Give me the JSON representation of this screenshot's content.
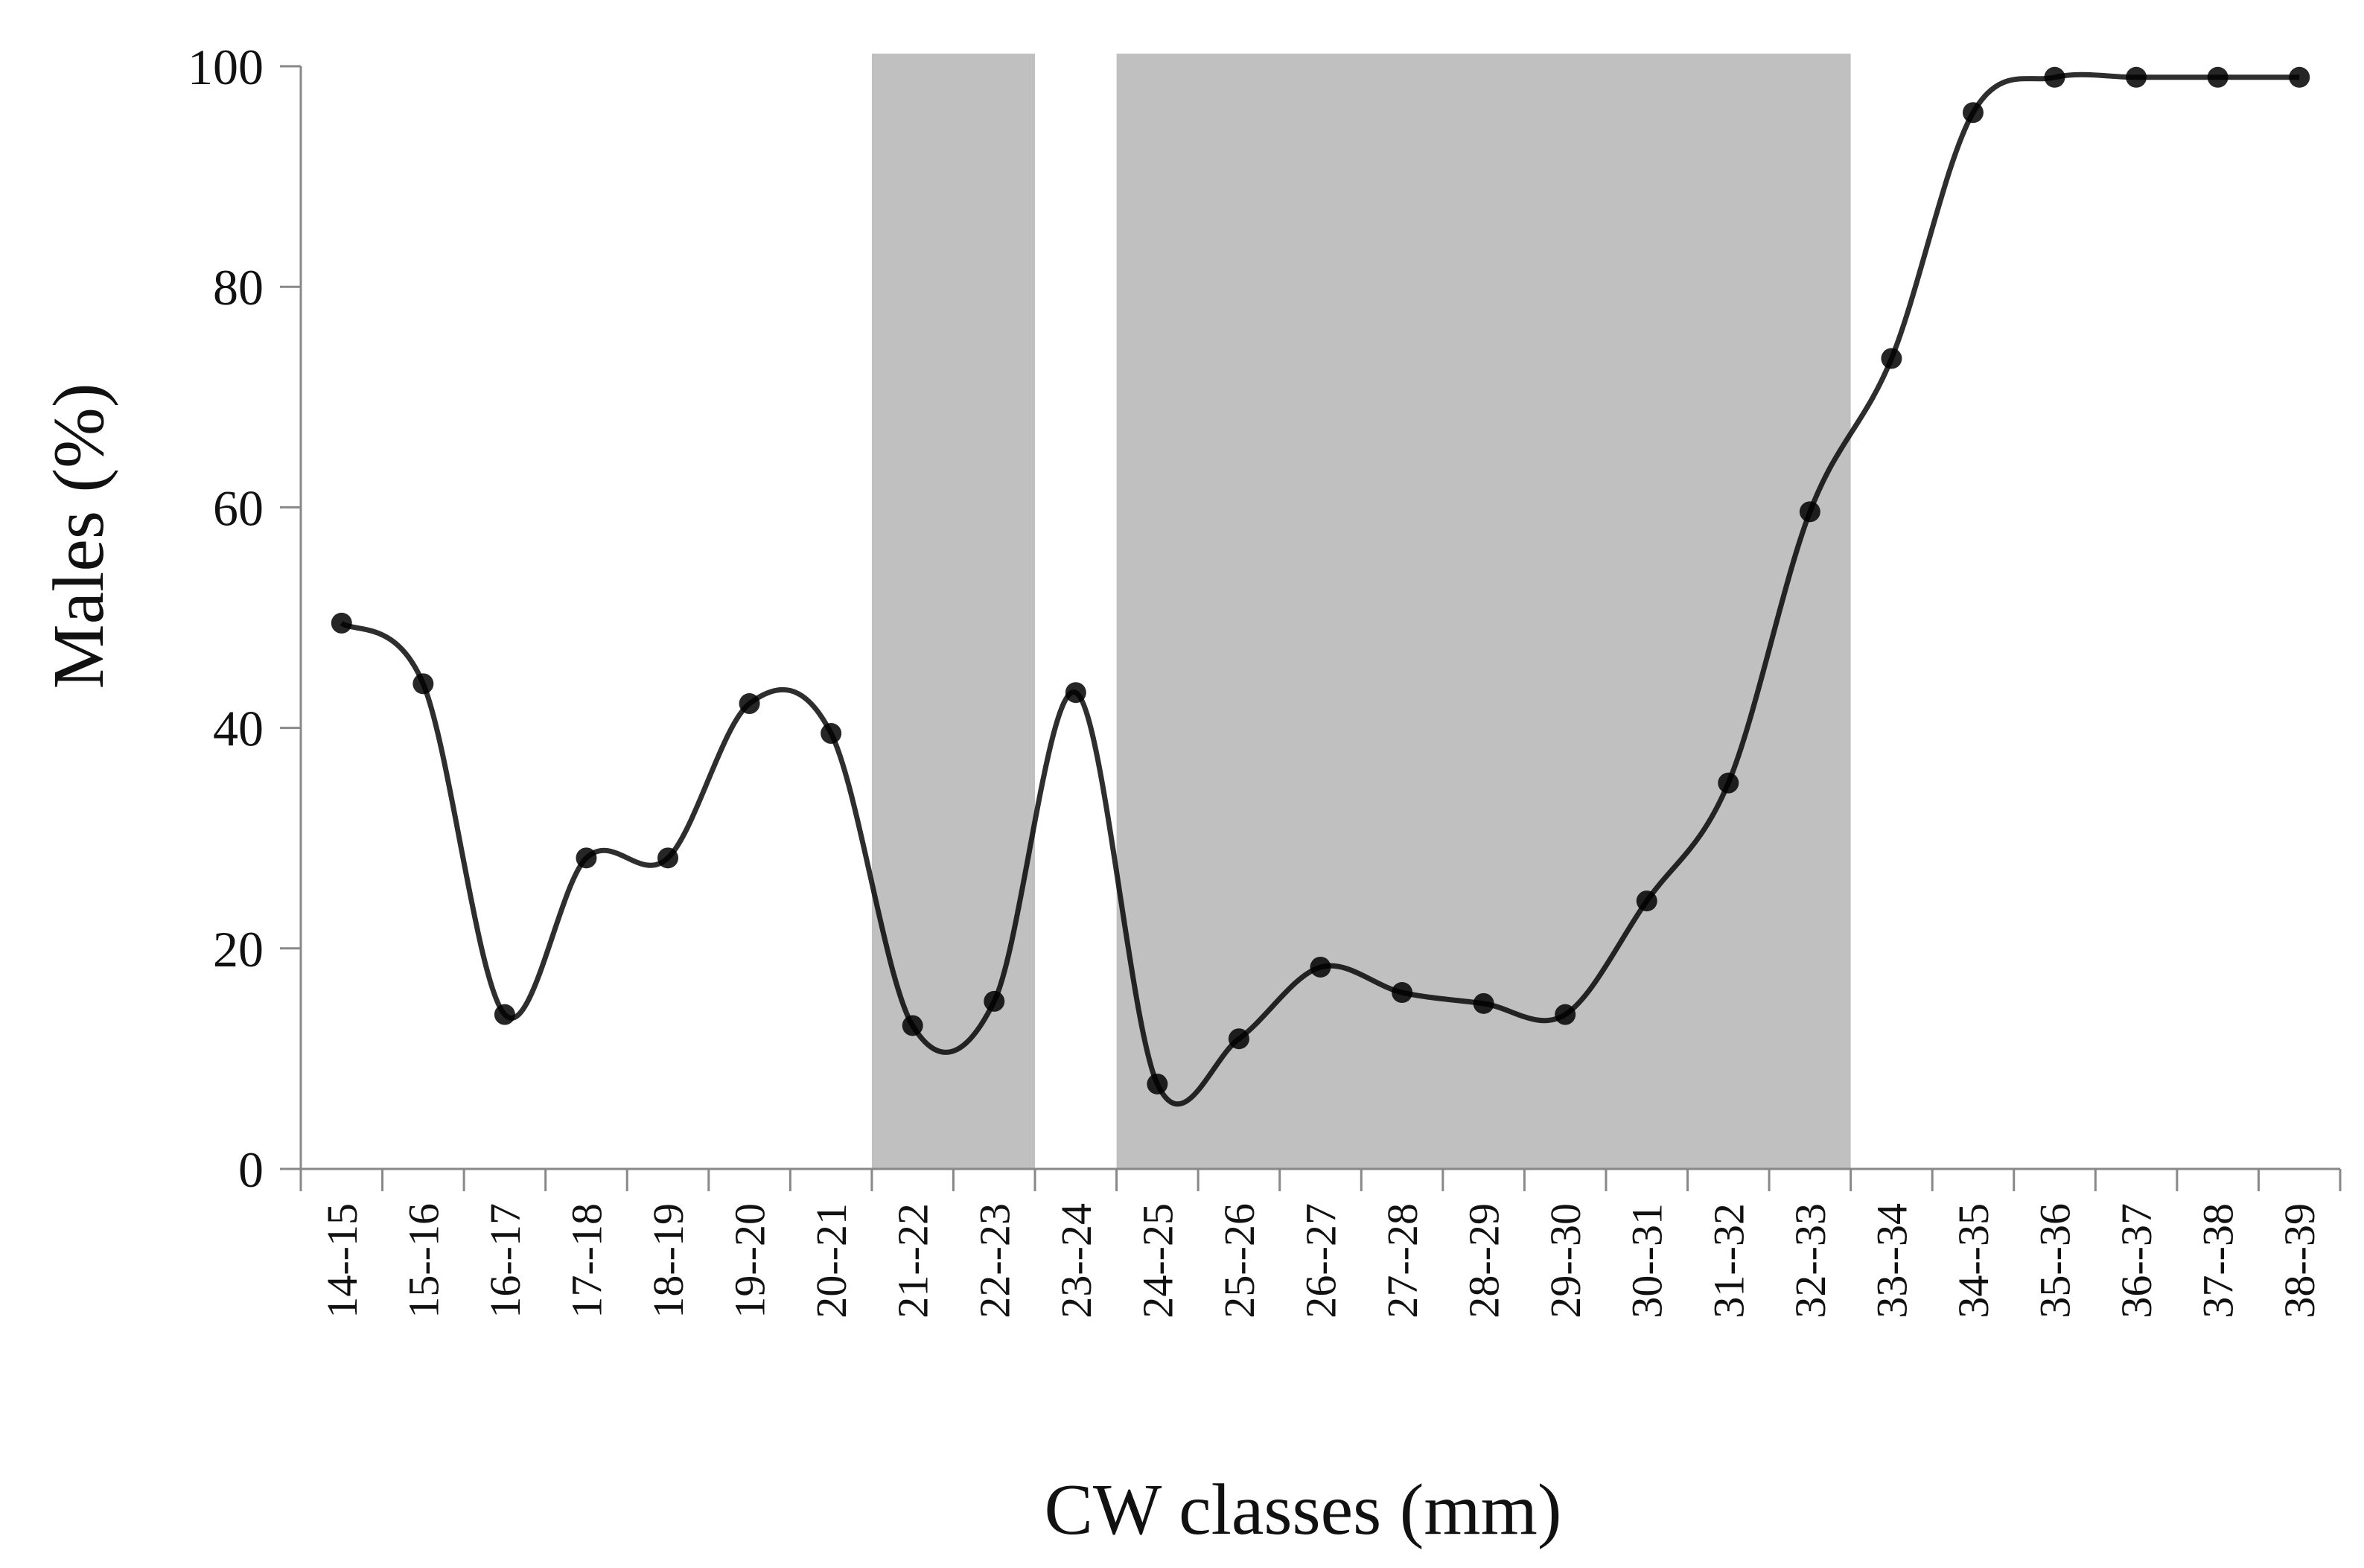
{
  "chart_data": {
    "type": "line",
    "xlabel": "CW classes (mm)",
    "ylabel": "Males (%)",
    "ylim": [
      0,
      100
    ],
    "yticks": [
      0,
      20,
      40,
      60,
      80,
      100
    ],
    "grid": false,
    "categories": [
      "14--15",
      "15--16",
      "16--17",
      "17--18",
      "18--19",
      "19--20",
      "20--21",
      "21--22",
      "22--23",
      "23--24",
      "24--25",
      "25--26",
      "26--27",
      "27--28",
      "28--29",
      "29--30",
      "30--31",
      "31--32",
      "32--33",
      "33--34",
      "34--35",
      "35--36",
      "36--37",
      "37--38",
      "38--39"
    ],
    "series": [
      {
        "values": [
          49.5,
          44,
          14,
          28.2,
          28.2,
          42.2,
          39.5,
          13,
          15.2,
          43.2,
          7.7,
          11.8,
          18.3,
          16,
          15,
          14,
          24.3,
          35,
          59.6,
          73.5,
          95.8,
          99,
          99,
          99,
          99
        ],
        "color": "#000000"
      }
    ],
    "shaded_ranges": [
      {
        "from_category": "21--22",
        "to_category": "22--23",
        "color": "#c0c0c0"
      },
      {
        "from_category": "24--25",
        "to_category": "32--33",
        "color": "#c0c0c0"
      }
    ]
  }
}
